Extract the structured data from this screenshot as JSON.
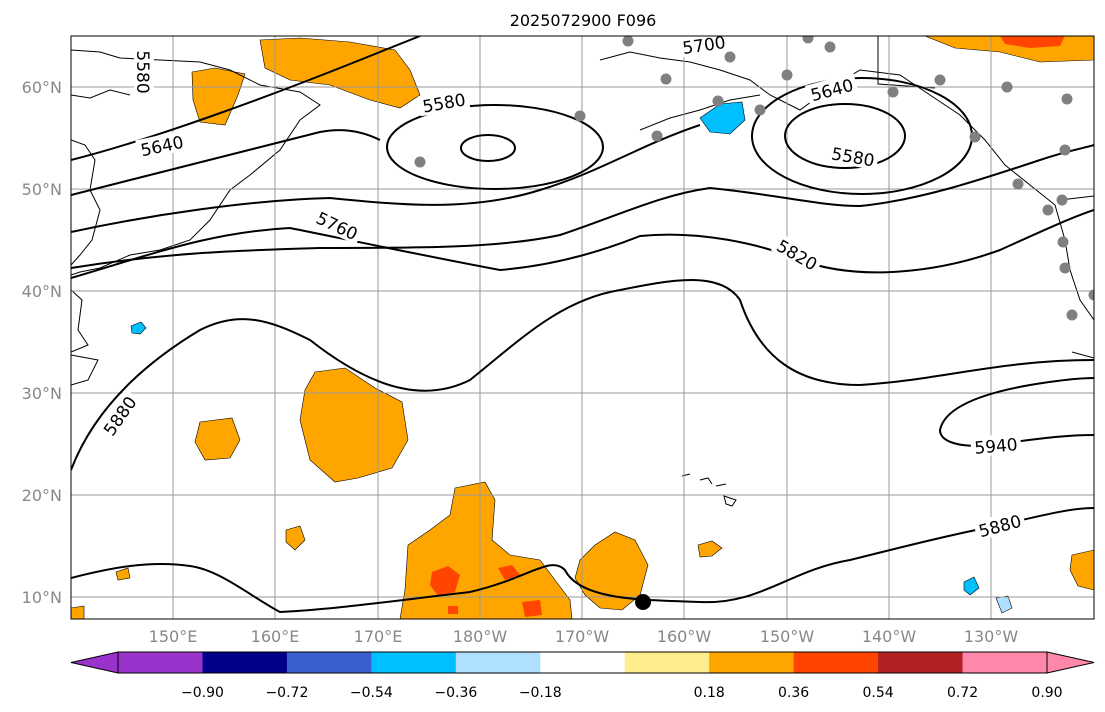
{
  "title": "2025072900 F096",
  "lat_labels": [
    "60°N",
    "50°N",
    "40°N",
    "30°N",
    "20°N",
    "10°N"
  ],
  "lon_labels": [
    "150°E",
    "160°E",
    "170°E",
    "180°W",
    "170°W",
    "160°W",
    "150°W",
    "140°W",
    "130°W"
  ],
  "contour_labels": [
    "5580",
    "5580",
    "5640",
    "5700",
    "5580",
    "5640",
    "5760",
    "5820",
    "5880",
    "5940",
    "5880"
  ],
  "colorbar": {
    "ticks": [
      "−0.90",
      "−0.72",
      "−0.54",
      "−0.36",
      "−0.18",
      "0.18",
      "0.36",
      "0.54",
      "0.72",
      "0.90"
    ],
    "colors": [
      "#9933cc",
      "#000088",
      "#3a5fcd",
      "#00bfff",
      "#b0e0ff",
      "#ffffff",
      "#ffec8b",
      "#ffa500",
      "#ff4500",
      "#b22222",
      "#ff88aa"
    ]
  },
  "colors": {
    "contour": "#000000",
    "station": "#808080",
    "positive_anomaly": "#ffa500",
    "strong_positive_anomaly": "#ff4500",
    "negative_anomaly": "#00bfff"
  }
}
